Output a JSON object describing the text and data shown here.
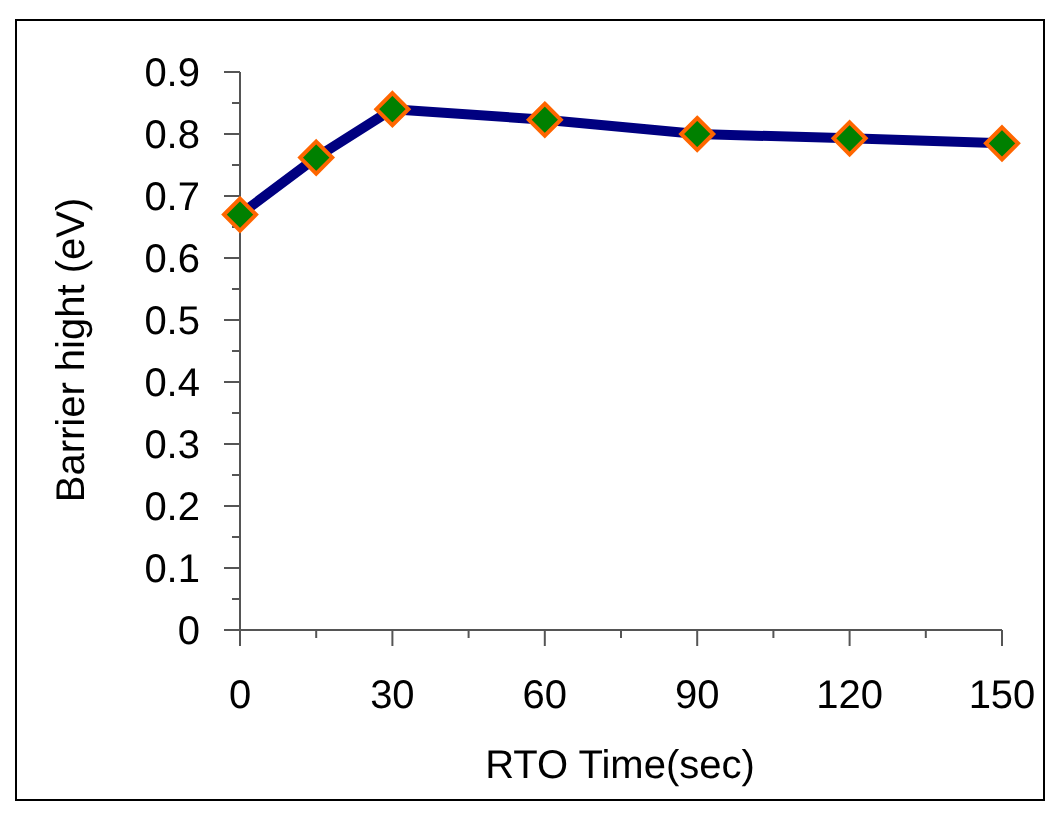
{
  "chart_data": {
    "type": "line",
    "xlabel": "RTO Time(sec)",
    "ylabel": "Barrier hight (eV)",
    "x": [
      0,
      15,
      30,
      60,
      90,
      120,
      150
    ],
    "series": [
      {
        "color": "#000080",
        "values": [
          0.67,
          0.762,
          0.84,
          0.823,
          0.8,
          0.793,
          0.785
        ]
      }
    ],
    "xlim": [
      0,
      150
    ],
    "xticks": [
      0,
      {
        "value": 15,
        "label": null
      },
      30,
      {
        "value": 45,
        "label": null
      },
      60,
      {
        "value": 75,
        "label": null
      },
      90,
      {
        "value": 105,
        "label": null
      },
      120,
      {
        "value": 135,
        "label": null
      },
      150
    ],
    "ylim": [
      0,
      0.9
    ],
    "yticks": [
      0,
      {
        "value": 0.05,
        "label": null
      },
      0.1,
      {
        "value": 0.15,
        "label": null
      },
      0.2,
      {
        "value": 0.25,
        "label": null
      },
      0.3,
      {
        "value": 0.35,
        "label": null
      },
      0.4,
      {
        "value": 0.45,
        "label": null
      },
      0.5,
      {
        "value": 0.55,
        "label": null
      },
      0.6,
      {
        "value": 0.65,
        "label": null
      },
      0.7,
      {
        "value": 0.75,
        "label": null
      },
      0.8,
      {
        "value": 0.85,
        "label": null
      },
      0.9
    ],
    "marker": "diamond",
    "line_style": "solid",
    "grid": false
  }
}
